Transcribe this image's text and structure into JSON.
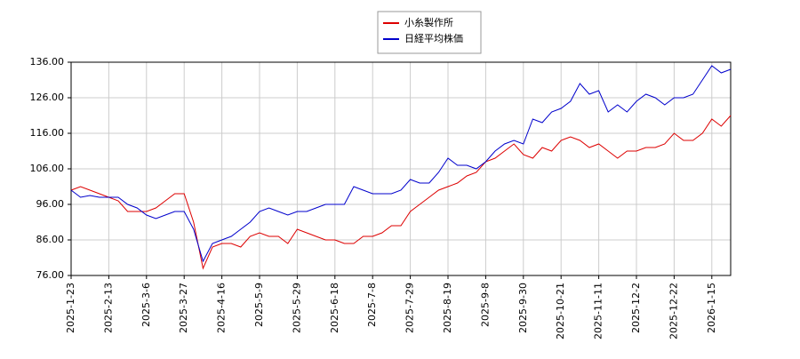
{
  "chart_data": {
    "type": "line",
    "categories": [
      "2025-1-23",
      null,
      null,
      null,
      "2025-2-13",
      null,
      null,
      null,
      "2025-3-6",
      null,
      null,
      null,
      "2025-3-27",
      null,
      null,
      null,
      "2025-4-16",
      null,
      null,
      null,
      "2025-5-9",
      null,
      null,
      null,
      "2025-5-29",
      null,
      null,
      null,
      "2025-6-18",
      null,
      null,
      null,
      "2025-7-8",
      null,
      null,
      null,
      "2025-7-29",
      null,
      null,
      null,
      "2025-8-19",
      null,
      null,
      null,
      "2025-9-8",
      null,
      null,
      null,
      "2025-9-30",
      null,
      null,
      null,
      "2025-10-21",
      null,
      null,
      null,
      "2025-11-11",
      null,
      null,
      null,
      "2025-12-2",
      null,
      null,
      null,
      "2025-12-22",
      null,
      null,
      null,
      "2026-1-15",
      null,
      null
    ],
    "series": [
      {
        "name": "小糸製作所",
        "color": "#dd0000",
        "values": [
          100,
          101,
          100,
          99,
          98,
          97,
          94,
          94,
          94,
          95,
          97,
          99,
          99,
          91,
          78,
          84,
          85,
          85,
          84,
          87,
          88,
          87,
          87,
          85,
          89,
          88,
          87,
          86,
          86,
          85,
          85,
          87,
          87,
          88,
          90,
          90,
          94,
          96,
          98,
          100,
          101,
          102,
          104,
          105,
          108,
          109,
          111,
          113,
          110,
          109,
          112,
          111,
          114,
          115,
          114,
          112,
          113,
          111,
          109,
          111,
          111,
          112,
          112,
          113,
          116,
          114,
          114,
          116,
          120,
          118,
          121
        ]
      },
      {
        "name": "日経平均株価",
        "color": "#0000cc",
        "values": [
          100,
          98,
          98.5,
          98,
          98,
          98,
          96,
          95,
          93,
          92,
          93,
          94,
          94,
          89,
          80,
          85,
          86,
          87,
          89,
          91,
          94,
          95,
          94,
          93,
          94,
          94,
          95,
          96,
          96,
          96,
          101,
          100,
          99,
          99,
          99,
          100,
          103,
          102,
          102,
          105,
          109,
          107,
          107,
          106,
          108,
          111,
          113,
          114,
          113,
          120,
          119,
          122,
          123,
          125,
          130,
          127,
          128,
          122,
          124,
          122,
          125,
          127,
          126,
          124,
          126,
          126,
          127,
          131,
          135,
          133,
          134
        ]
      }
    ],
    "ylim": [
      76,
      136
    ],
    "yticks": [
      {
        "value": 76,
        "label": "76.00"
      },
      {
        "value": 86,
        "label": "86.00"
      },
      {
        "value": 96,
        "label": "96.00"
      },
      {
        "value": 106,
        "label": "106.00"
      },
      {
        "value": 116,
        "label": "116.00"
      },
      {
        "value": 126,
        "label": "126.00"
      },
      {
        "value": 136,
        "label": "136.00"
      }
    ],
    "grid": true,
    "legend": "top"
  }
}
